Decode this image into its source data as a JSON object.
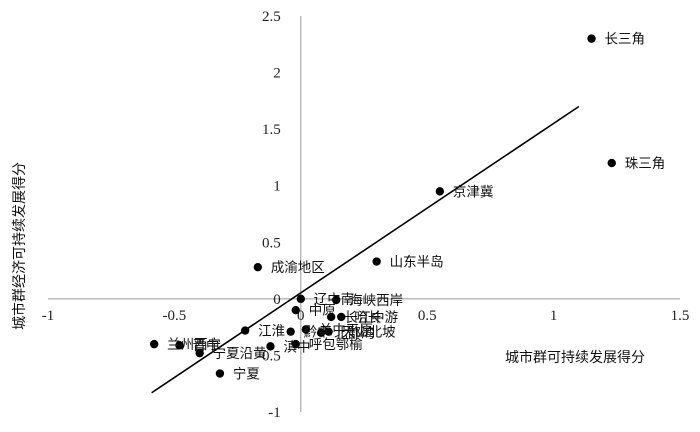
{
  "chart_data": {
    "type": "scatter",
    "xlabel": "城市群可持续发展得分",
    "ylabel": "城市群经济可持续发展得分",
    "xlim": [
      -1,
      1.5
    ],
    "ylim": [
      -1,
      2.5
    ],
    "x_ticks": [
      "-1",
      "-0.5",
      "0",
      "0.5",
      "1",
      "1.5"
    ],
    "y_ticks": [
      "-1",
      "-0.5",
      "0",
      "0.5",
      "1",
      "1.5",
      "2",
      "2.5"
    ],
    "grid": false,
    "legend": "none",
    "trendline": {
      "type": "linear",
      "x_start": -0.59,
      "y_start": -0.83,
      "x_end": 1.1,
      "y_end": 1.7
    },
    "points": [
      {
        "label": "长三角",
        "x": 1.15,
        "y": 2.3
      },
      {
        "label": "珠三角",
        "x": 1.23,
        "y": 1.2
      },
      {
        "label": "京津冀",
        "x": 0.55,
        "y": 0.95
      },
      {
        "label": "山东半岛",
        "x": 0.3,
        "y": 0.33
      },
      {
        "label": "成渝地区",
        "x": -0.17,
        "y": 0.28
      },
      {
        "label": "辽中南",
        "x": 0.0,
        "y": 0.0
      },
      {
        "label": "海峡西岸",
        "x": 0.14,
        "y": -0.01
      },
      {
        "label": "中原",
        "x": -0.02,
        "y": -0.1
      },
      {
        "label": "长江中游",
        "x": 0.12,
        "y": -0.16
      },
      {
        "label": "哈长",
        "x": 0.16,
        "y": -0.16
      },
      {
        "label": "江淮",
        "x": -0.22,
        "y": -0.28
      },
      {
        "label": "关中平原",
        "x": 0.02,
        "y": -0.27
      },
      {
        "label": "天山北坡",
        "x": 0.11,
        "y": -0.29
      },
      {
        "label": "北部湾",
        "x": 0.08,
        "y": -0.3
      },
      {
        "label": "黔中",
        "x": -0.04,
        "y": -0.29
      },
      {
        "label": "呼包鄂榆",
        "x": -0.02,
        "y": -0.4
      },
      {
        "label": "滇中",
        "x": -0.12,
        "y": -0.42
      },
      {
        "label": "兰州西宁",
        "x": -0.58,
        "y": -0.4
      },
      {
        "label": "晋中",
        "x": -0.48,
        "y": -0.41
      },
      {
        "label": "宁夏沿黄",
        "x": -0.4,
        "y": -0.48
      },
      {
        "label": "宁夏",
        "x": -0.32,
        "y": -0.66
      }
    ]
  }
}
